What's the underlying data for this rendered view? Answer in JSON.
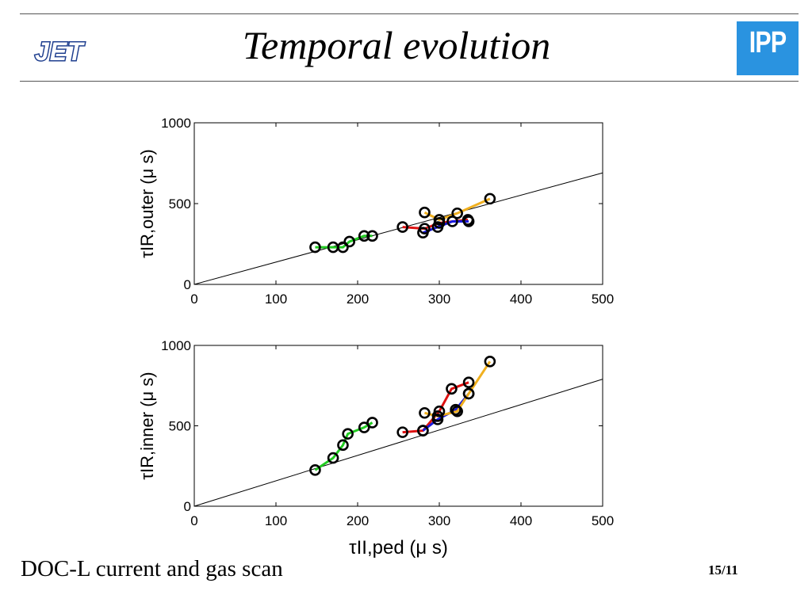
{
  "slide": {
    "title": "Temporal evolution",
    "footer_text": "DOC-L current and gas scan",
    "page_number": "15/11",
    "logo_left": "JET",
    "logo_right": "IPP",
    "ipp_color": "#2a93e0",
    "jet_color": "#1f3f8f"
  },
  "chart_data": [
    {
      "type": "line",
      "ylabel": "τIR,outer (μ s)",
      "xlabel": "",
      "xlim": [
        0,
        500
      ],
      "ylim": [
        0,
        1000
      ],
      "xticks": [
        "0",
        "100",
        "200",
        "300",
        "400",
        "500"
      ],
      "yticks": [
        "0",
        "500",
        "1000"
      ],
      "reference_line": {
        "x": [
          0,
          500
        ],
        "y": [
          0,
          690
        ]
      },
      "marker": "open-circle",
      "series": [
        {
          "color": "#22cc22",
          "x": [
            148,
            170,
            182,
            190,
            208,
            218
          ],
          "y": [
            230,
            230,
            230,
            265,
            300,
            300
          ]
        },
        {
          "color": "#dd1111",
          "x": [
            255,
            282,
            300,
            335
          ],
          "y": [
            355,
            345,
            380,
            400
          ]
        },
        {
          "color": "#1a1add",
          "x": [
            280,
            298,
            316,
            336
          ],
          "y": [
            320,
            355,
            390,
            390
          ]
        },
        {
          "color": "#f0b020",
          "x": [
            282,
            300,
            322,
            362
          ],
          "y": [
            445,
            400,
            440,
            530
          ]
        }
      ]
    },
    {
      "type": "line",
      "ylabel": "τIR,inner (μ s)",
      "xlabel": "τII,ped (μ s)",
      "xlim": [
        0,
        500
      ],
      "ylim": [
        0,
        1000
      ],
      "xticks": [
        "0",
        "100",
        "200",
        "300",
        "400",
        "500"
      ],
      "yticks": [
        "0",
        "500",
        "1000"
      ],
      "reference_line": {
        "x": [
          0,
          500
        ],
        "y": [
          0,
          790
        ]
      },
      "marker": "open-circle",
      "series": [
        {
          "color": "#22cc22",
          "x": [
            148,
            170,
            182,
            188,
            208,
            218
          ],
          "y": [
            225,
            300,
            380,
            450,
            490,
            520
          ]
        },
        {
          "color": "#dd1111",
          "x": [
            255,
            280,
            300,
            315,
            336
          ],
          "y": [
            460,
            470,
            590,
            730,
            770
          ]
        },
        {
          "color": "#1a1add",
          "x": [
            280,
            298,
            320,
            336
          ],
          "y": [
            470,
            540,
            600,
            700
          ]
        },
        {
          "color": "#f0b020",
          "x": [
            282,
            298,
            322,
            336,
            362
          ],
          "y": [
            580,
            560,
            590,
            700,
            900
          ]
        }
      ]
    }
  ]
}
